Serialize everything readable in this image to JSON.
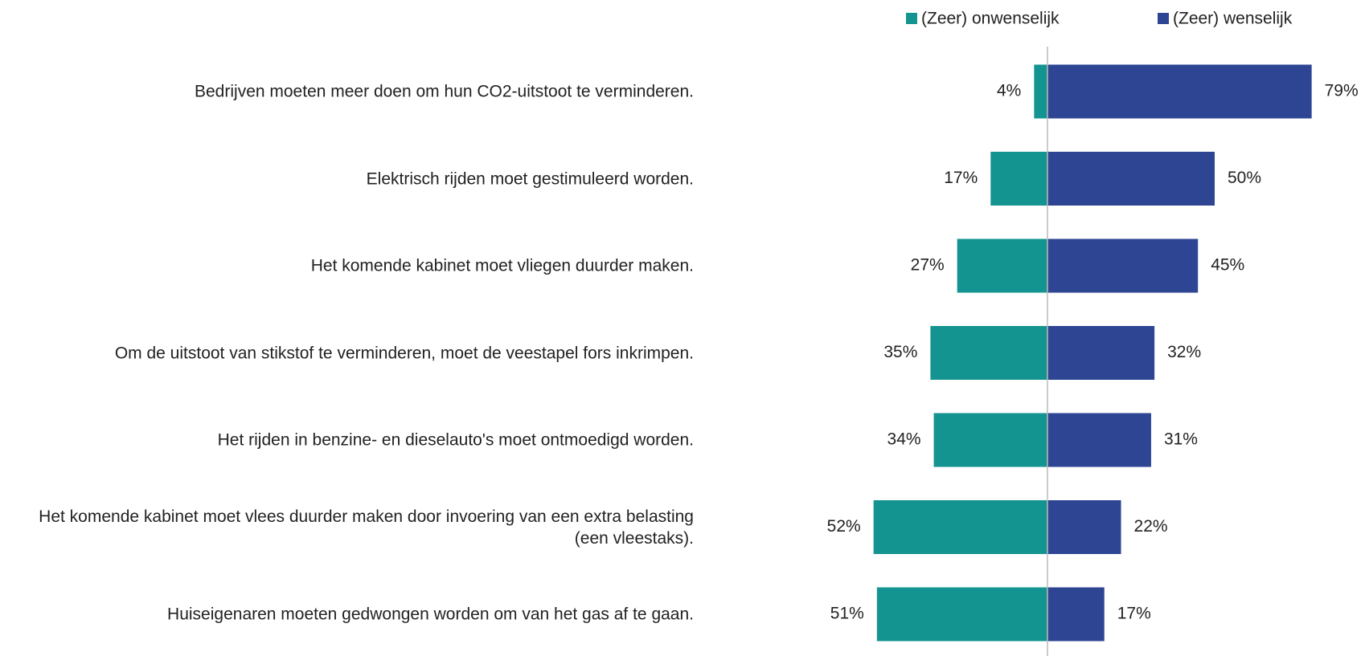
{
  "chart_data": {
    "type": "diverging-bar",
    "categories": [
      "Bedrijven moeten meer doen om hun CO2-uitstoot te verminderen.",
      "Elektrisch rijden moet gestimuleerd worden.",
      "Het komende kabinet moet vliegen duurder maken.",
      "Om de uitstoot van stikstof te verminderen, moet de veestapel fors inkrimpen.",
      "Het rijden in benzine- en dieselauto's moet ontmoedigd worden.",
      "Het komende kabinet moet vlees duurder maken door invoering van een extra belasting (een vleestaks).",
      "Huiseigenaren moeten gedwongen worden om van het gas af te gaan."
    ],
    "series": [
      {
        "name": "(Zeer) onwenselijk",
        "color": "#149490",
        "values": [
          4,
          17,
          27,
          35,
          34,
          52,
          51
        ],
        "value_labels": [
          "4%",
          "17%",
          "27%",
          "35%",
          "34%",
          "52%",
          "51%"
        ]
      },
      {
        "name": "(Zeer) wenselijk",
        "color": "#2e4593",
        "values": [
          79,
          50,
          45,
          32,
          31,
          22,
          17
        ],
        "value_labels": [
          "79%",
          "50%",
          "45%",
          "32%",
          "31%",
          "22%",
          "17%"
        ]
      }
    ],
    "legend": "top-right"
  }
}
